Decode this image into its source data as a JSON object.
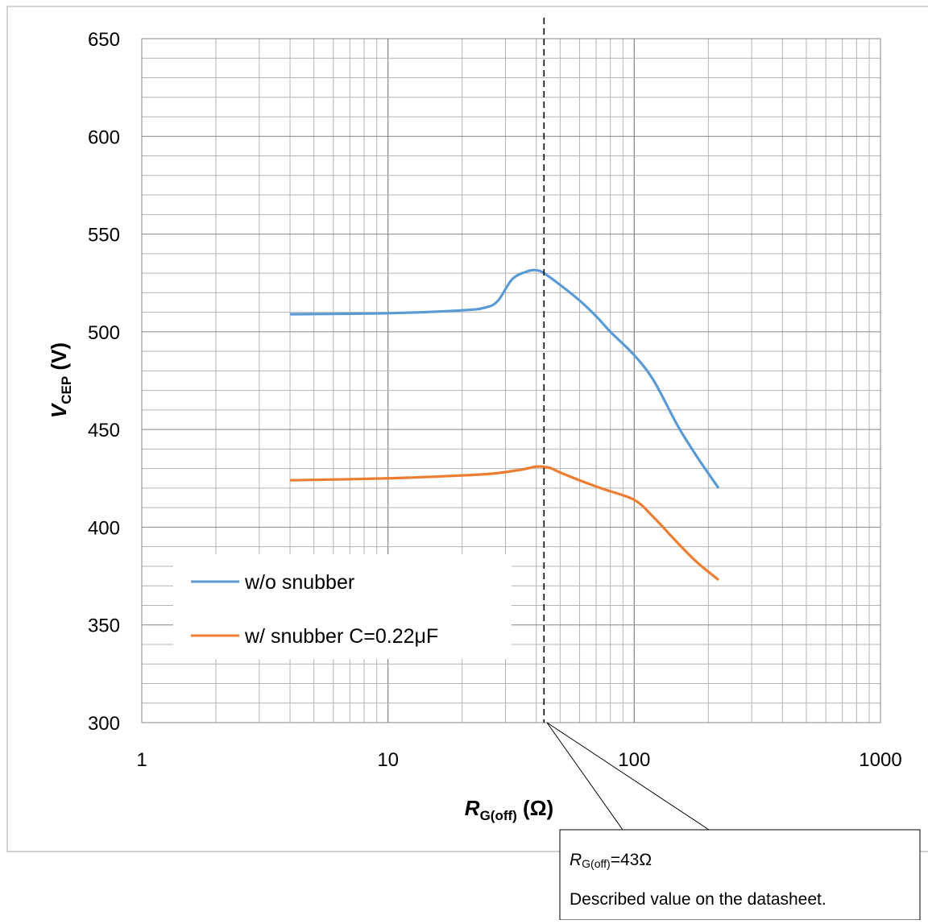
{
  "chart_data": {
    "type": "line",
    "x_scale": "log",
    "xlim": [
      1,
      1000
    ],
    "ylim": [
      300,
      650
    ],
    "x_ticks": [
      "1",
      "10",
      "100",
      "1000"
    ],
    "y_ticks": [
      "300",
      "350",
      "400",
      "450",
      "500",
      "550",
      "600",
      "650"
    ],
    "xlabel": {
      "main": "R",
      "sub": "G(off)",
      "unit": " (Ω)"
    },
    "ylabel": {
      "main": "V",
      "sub": "CEP",
      "unit": " (V)"
    },
    "grid": true,
    "legend_position": "bottom-left",
    "series": [
      {
        "name": "w/o snubber",
        "color": "#5B9BD5",
        "points": [
          [
            4,
            509
          ],
          [
            10,
            509.5
          ],
          [
            20,
            511
          ],
          [
            25,
            512.5
          ],
          [
            28,
            516
          ],
          [
            32,
            527
          ],
          [
            37,
            531
          ],
          [
            40,
            531.5
          ],
          [
            43,
            530
          ],
          [
            50,
            524
          ],
          [
            60,
            516
          ],
          [
            70,
            508
          ],
          [
            80,
            500
          ],
          [
            100,
            488
          ],
          [
            120,
            475
          ],
          [
            150,
            452
          ],
          [
            180,
            436
          ],
          [
            220,
            420
          ]
        ]
      },
      {
        "name": "w/ snubber C=0.22μF",
        "color": "#ED7D31",
        "points": [
          [
            4,
            424
          ],
          [
            10,
            425
          ],
          [
            20,
            426.5
          ],
          [
            27,
            427.5
          ],
          [
            35,
            429.5
          ],
          [
            40,
            431
          ],
          [
            45,
            430.5
          ],
          [
            50,
            428
          ],
          [
            60,
            424
          ],
          [
            75,
            419.5
          ],
          [
            100,
            414
          ],
          [
            120,
            405
          ],
          [
            150,
            392
          ],
          [
            180,
            382
          ],
          [
            220,
            373
          ]
        ]
      }
    ],
    "reference_line": {
      "x": 43
    },
    "annotation": {
      "line1_main": "R",
      "line1_sub": "G(off)",
      "line1_rest": "=43Ω",
      "line2": "Described value on the datasheet."
    }
  }
}
